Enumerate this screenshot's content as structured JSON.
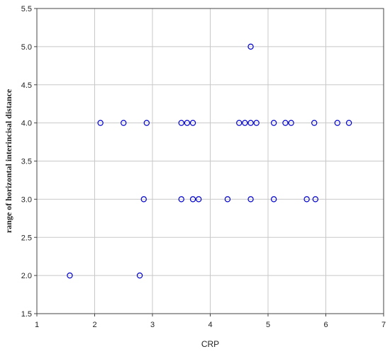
{
  "chart_data": {
    "type": "scatter",
    "title": "",
    "xlabel": "CRP",
    "ylabel": "range of horizontal interincisal distance",
    "xlim": [
      1,
      7
    ],
    "ylim": [
      1.5,
      5.5
    ],
    "x_ticks": [
      "1",
      "2",
      "3",
      "4",
      "5",
      "6",
      "7"
    ],
    "y_ticks": [
      "1.5",
      "2.0",
      "2.5",
      "3.0",
      "3.5",
      "4.0",
      "4.5",
      "5.0",
      "5.5"
    ],
    "grid": true,
    "marker": "open-circle",
    "marker_color": "#0000cc",
    "points": [
      {
        "x": 1.57,
        "y": 2.0
      },
      {
        "x": 2.78,
        "y": 2.0
      },
      {
        "x": 2.85,
        "y": 3.0
      },
      {
        "x": 3.5,
        "y": 3.0
      },
      {
        "x": 3.7,
        "y": 3.0
      },
      {
        "x": 3.8,
        "y": 3.0
      },
      {
        "x": 4.3,
        "y": 3.0
      },
      {
        "x": 4.7,
        "y": 3.0
      },
      {
        "x": 5.1,
        "y": 3.0
      },
      {
        "x": 5.67,
        "y": 3.0
      },
      {
        "x": 5.82,
        "y": 3.0
      },
      {
        "x": 2.1,
        "y": 4.0
      },
      {
        "x": 2.5,
        "y": 4.0
      },
      {
        "x": 2.9,
        "y": 4.0
      },
      {
        "x": 3.5,
        "y": 4.0
      },
      {
        "x": 3.6,
        "y": 4.0
      },
      {
        "x": 3.7,
        "y": 4.0
      },
      {
        "x": 4.5,
        "y": 4.0
      },
      {
        "x": 4.6,
        "y": 4.0
      },
      {
        "x": 4.7,
        "y": 4.0
      },
      {
        "x": 4.8,
        "y": 4.0
      },
      {
        "x": 5.1,
        "y": 4.0
      },
      {
        "x": 5.3,
        "y": 4.0
      },
      {
        "x": 5.4,
        "y": 4.0
      },
      {
        "x": 5.8,
        "y": 4.0
      },
      {
        "x": 6.2,
        "y": 4.0
      },
      {
        "x": 6.4,
        "y": 4.0
      },
      {
        "x": 4.7,
        "y": 5.0
      }
    ]
  }
}
